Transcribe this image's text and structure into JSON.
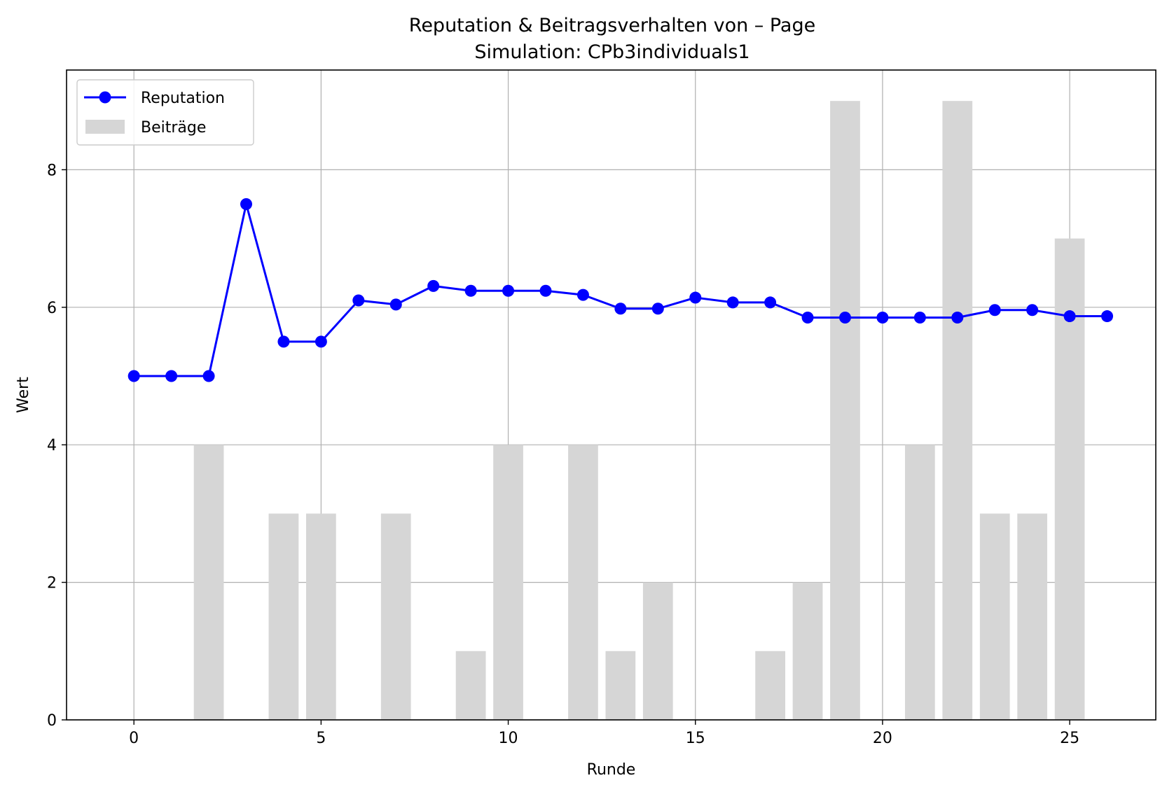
{
  "chart_data": {
    "type": "bar+line",
    "title": "Reputation & Beitragsverhalten von – Page",
    "subtitle": "Simulation: CPb3individuals1",
    "xlabel": "Runde",
    "ylabel": "Wert",
    "xlim": [
      -1.8,
      27.3
    ],
    "ylim": [
      0,
      9.45
    ],
    "xticks": [
      0,
      5,
      10,
      15,
      20,
      25
    ],
    "yticks": [
      0,
      2,
      4,
      6,
      8
    ],
    "grid": true,
    "legend_position": "upper left",
    "colors": {
      "line": "#0000ff",
      "bars": "#d6d6d6",
      "grid": "#b0b0b0"
    },
    "x": [
      0,
      1,
      2,
      3,
      4,
      5,
      6,
      7,
      8,
      9,
      10,
      11,
      12,
      13,
      14,
      15,
      16,
      17,
      18,
      19,
      20,
      21,
      22,
      23,
      24,
      25,
      26
    ],
    "series": [
      {
        "name": "Reputation",
        "kind": "line",
        "values": [
          5.0,
          5.0,
          5.0,
          7.5,
          5.5,
          5.5,
          6.1,
          6.04,
          6.31,
          6.24,
          6.24,
          6.24,
          6.18,
          5.98,
          5.98,
          6.14,
          6.07,
          6.07,
          5.85,
          5.85,
          5.85,
          5.85,
          5.85,
          5.96,
          5.96,
          5.87,
          5.87
        ]
      },
      {
        "name": "Beiträge",
        "kind": "bar",
        "values": [
          0,
          0,
          4,
          0,
          3,
          3,
          0,
          3,
          0,
          1,
          4,
          0,
          4,
          1,
          2,
          0,
          0,
          1,
          2,
          9,
          0,
          4,
          9,
          3,
          3,
          7,
          0
        ]
      }
    ]
  }
}
